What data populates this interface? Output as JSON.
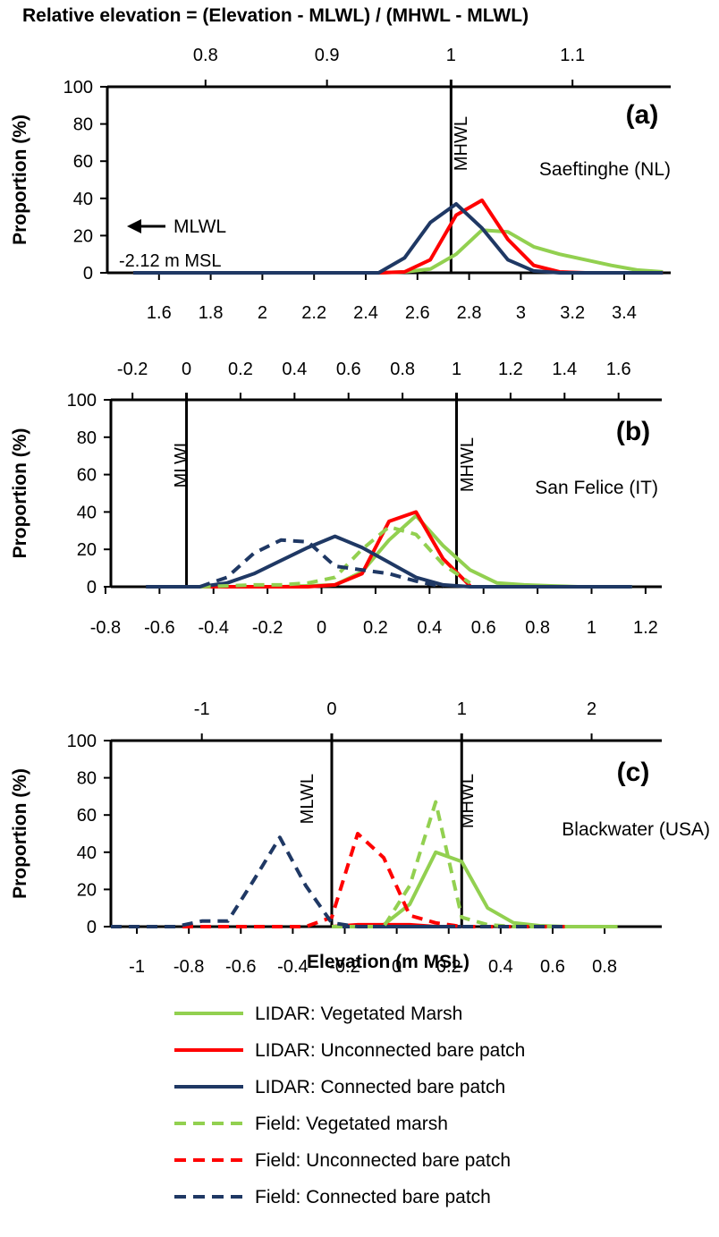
{
  "figure": {
    "top_axis_title": "Relative elevation = (Elevation - MLWL) / (MHWL - MLWL)",
    "y_axis_title": "Proportion (%)",
    "bottom_axis_title": "Elevation (m MSL)"
  },
  "legend": [
    {
      "label": "LIDAR: Vegetated Marsh",
      "color": "#92d050",
      "dashed": false
    },
    {
      "label": "LIDAR: Unconnected bare patch",
      "color": "#ff0000",
      "dashed": false
    },
    {
      "label": "LIDAR: Connected bare patch",
      "color": "#1f3864",
      "dashed": false
    },
    {
      "label": "Field: Vegetated marsh",
      "color": "#92d050",
      "dashed": true
    },
    {
      "label": "Field: Unconnected bare patch",
      "color": "#ff0000",
      "dashed": true
    },
    {
      "label": "Field: Connected bare patch",
      "color": "#1f3864",
      "dashed": true
    }
  ],
  "chart_data": [
    {
      "type": "line",
      "panel_label": "(a)",
      "site": "Saeftinghe (NL)",
      "xlim": [
        1.4,
        3.58
      ],
      "ylim": [
        0,
        100
      ],
      "x_ticks": [
        "1.6",
        "1.8",
        "2",
        "2.2",
        "2.4",
        "2.6",
        "2.8",
        "3",
        "3.2",
        "3.4"
      ],
      "y_ticks": [
        "0",
        "20",
        "40",
        "60",
        "80",
        "100"
      ],
      "top_axis": {
        "ticks": [
          "0.8",
          "0.9",
          "1",
          "1.1"
        ],
        "values_in_x": [
          1.78,
          2.25,
          2.73,
          3.2
        ]
      },
      "reference_lines": [
        {
          "label": "MHWL",
          "x": 2.73
        }
      ],
      "annotation": {
        "arrow_label": "MLWL",
        "sub_label": "-2.12 m MSL"
      },
      "series": [
        {
          "legend_index": 0,
          "x": [
            1.5,
            2.45,
            2.55,
            2.65,
            2.75,
            2.85,
            2.95,
            3.05,
            3.15,
            3.25,
            3.35,
            3.45,
            3.55
          ],
          "y": [
            0,
            0,
            0.5,
            2,
            10,
            23,
            22,
            14,
            10,
            7,
            4,
            1.5,
            0.5
          ]
        },
        {
          "legend_index": 1,
          "x": [
            1.5,
            2.45,
            2.55,
            2.65,
            2.75,
            2.85,
            2.95,
            3.05,
            3.15,
            3.25,
            3.35,
            3.45,
            3.55
          ],
          "y": [
            0,
            0,
            0.5,
            7,
            31,
            39,
            18,
            4,
            0.5,
            0,
            0,
            0,
            0
          ]
        },
        {
          "legend_index": 2,
          "x": [
            1.5,
            2.45,
            2.55,
            2.65,
            2.75,
            2.85,
            2.95,
            3.05,
            3.15,
            3.25,
            3.35,
            3.45,
            3.55
          ],
          "y": [
            0,
            0,
            8,
            27,
            37,
            24,
            7,
            1,
            0,
            0,
            0,
            0,
            0
          ]
        }
      ]
    },
    {
      "type": "line",
      "panel_label": "(b)",
      "site": "San Felice (IT)",
      "xlim": [
        -0.78,
        1.26
      ],
      "ylim": [
        0,
        100
      ],
      "x_ticks": [
        "-0.8",
        "-0.6",
        "-0.4",
        "-0.2",
        "0",
        "0.2",
        "0.4",
        "0.6",
        "0.8",
        "1",
        "1.2"
      ],
      "y_ticks": [
        "0",
        "20",
        "40",
        "60",
        "80",
        "100"
      ],
      "top_axis": {
        "ticks": [
          "-0.2",
          "0",
          "0.2",
          "0.4",
          "0.6",
          "0.8",
          "1",
          "1.2",
          "1.4",
          "1.6"
        ],
        "values_in_x": [
          -0.7,
          -0.5,
          -0.3,
          -0.1,
          0.1,
          0.3,
          0.5,
          0.7,
          0.9,
          1.1
        ]
      },
      "reference_lines": [
        {
          "label": "MLWL",
          "x": -0.5
        },
        {
          "label": "MHWL",
          "x": 0.5
        }
      ],
      "series": [
        {
          "legend_index": 0,
          "x": [
            -0.45,
            -0.35,
            -0.25,
            -0.15,
            -0.05,
            0.05,
            0.15,
            0.25,
            0.35,
            0.45,
            0.55,
            0.65,
            0.75,
            0.85,
            0.95,
            1.05,
            1.15
          ],
          "y": [
            0,
            0,
            0,
            0,
            0.5,
            1,
            8,
            25,
            38,
            22,
            9,
            2,
            1,
            0.5,
            0,
            0,
            0
          ]
        },
        {
          "legend_index": 1,
          "x": [
            -0.45,
            -0.35,
            -0.25,
            -0.15,
            -0.05,
            0.05,
            0.15,
            0.25,
            0.35,
            0.45,
            0.55
          ],
          "y": [
            0,
            0,
            0,
            0,
            0,
            1,
            7,
            35,
            40,
            15,
            0.5
          ]
        },
        {
          "legend_index": 2,
          "x": [
            -0.65,
            -0.45,
            -0.35,
            -0.25,
            -0.15,
            -0.05,
            0.05,
            0.15,
            0.25,
            0.35,
            0.45,
            0.55,
            0.65,
            0.75,
            0.85,
            0.95,
            1.05,
            1.15
          ],
          "y": [
            0,
            0,
            2,
            7,
            14,
            21,
            27,
            21,
            13,
            5,
            1,
            0,
            0,
            0,
            0,
            0,
            0,
            0
          ]
        },
        {
          "legend_index": 3,
          "x": [
            -0.45,
            -0.35,
            -0.25,
            -0.15,
            -0.05,
            0.05,
            0.15,
            0.25,
            0.35,
            0.45,
            0.55
          ],
          "y": [
            0,
            0.5,
            1,
            1,
            2,
            5,
            20,
            32,
            28,
            12,
            2
          ]
        },
        {
          "legend_index": 5,
          "x": [
            -0.65,
            -0.45,
            -0.35,
            -0.25,
            -0.15,
            -0.05,
            0.05,
            0.15,
            0.25,
            0.35,
            0.45
          ],
          "y": [
            0,
            0,
            5,
            18,
            25,
            24,
            11,
            9,
            7,
            3,
            0
          ]
        }
      ]
    },
    {
      "type": "line",
      "panel_label": "(c)",
      "site": "Blackwater (USA)",
      "xlim": [
        -1.1,
        1.02
      ],
      "ylim": [
        0,
        100
      ],
      "x_ticks": [
        "-1",
        "-0.8",
        "-0.6",
        "-0.4",
        "-0.2",
        "0",
        "0.2",
        "0.4",
        "0.6",
        "0.8"
      ],
      "y_ticks": [
        "0",
        "20",
        "40",
        "60",
        "80",
        "100"
      ],
      "top_axis": {
        "ticks": [
          "-1",
          "0",
          "1",
          "2"
        ],
        "values_in_x": [
          -0.75,
          -0.25,
          0.25,
          0.75
        ]
      },
      "reference_lines": [
        {
          "label": "MLWL",
          "x": -0.25
        },
        {
          "label": "MHWL",
          "x": 0.25
        }
      ],
      "series": [
        {
          "legend_index": 0,
          "x": [
            -0.25,
            -0.15,
            -0.05,
            0.05,
            0.15,
            0.25,
            0.35,
            0.45,
            0.55,
            0.65,
            0.75,
            0.85
          ],
          "y": [
            0,
            0,
            1,
            12,
            40,
            35,
            10,
            2,
            0.5,
            0,
            0,
            0
          ]
        },
        {
          "legend_index": 1,
          "x": [
            -0.25,
            -0.15,
            -0.05,
            0.05,
            0.15,
            0.25
          ],
          "y": [
            0,
            1,
            1,
            1,
            0,
            0
          ]
        },
        {
          "legend_index": 2,
          "x": [
            -0.25,
            -0.15,
            -0.05,
            0.05,
            0.15,
            0.25
          ],
          "y": [
            0,
            0,
            0,
            0,
            0,
            0
          ]
        },
        {
          "legend_index": 3,
          "x": [
            -0.25,
            -0.15,
            -0.05,
            0.05,
            0.15,
            0.25,
            0.35,
            0.45,
            0.55,
            0.65
          ],
          "y": [
            0,
            0,
            0,
            22,
            67,
            5,
            1,
            0,
            0,
            0
          ]
        },
        {
          "legend_index": 4,
          "x": [
            -1.1,
            -0.45,
            -0.35,
            -0.25,
            -0.15,
            -0.05,
            0.05,
            0.15,
            0.25,
            0.35,
            0.45,
            0.55,
            0.65
          ],
          "y": [
            0,
            0,
            0,
            5,
            50,
            37,
            6,
            2,
            0,
            0,
            0,
            0,
            0
          ]
        },
        {
          "legend_index": 5,
          "x": [
            -1.1,
            -0.95,
            -0.85,
            -0.75,
            -0.65,
            -0.55,
            -0.45,
            -0.35,
            -0.25,
            -0.15,
            -0.05,
            0.05,
            0.15,
            0.25,
            0.35,
            0.45,
            0.55,
            0.65
          ],
          "y": [
            0,
            0,
            0,
            3,
            3,
            25,
            48,
            22,
            2,
            0,
            0,
            0,
            0,
            0,
            0,
            0,
            0,
            0
          ]
        }
      ]
    }
  ]
}
